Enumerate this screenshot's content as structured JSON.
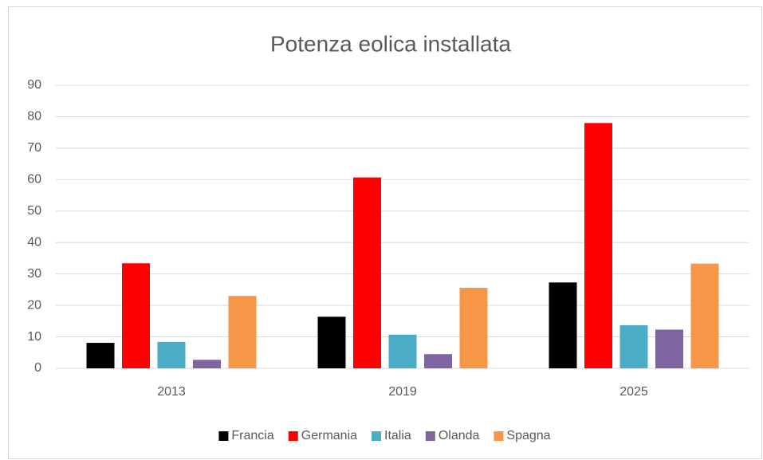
{
  "chart_data": {
    "type": "bar",
    "title": "Potenza eolica installata",
    "categories": [
      "2013",
      "2019",
      "2025"
    ],
    "series": [
      {
        "name": "Francia",
        "color": "#000000",
        "values": [
          8.1,
          16.4,
          27.3
        ]
      },
      {
        "name": "Germania",
        "color": "#ff0000",
        "values": [
          33.4,
          60.7,
          78
        ]
      },
      {
        "name": "Italia",
        "color": "#4bacc6",
        "values": [
          8.4,
          10.7,
          13.7
        ]
      },
      {
        "name": "Olanda",
        "color": "#8064a2",
        "values": [
          2.7,
          4.5,
          12.3
        ]
      },
      {
        "name": "Spagna",
        "color": "#f79646",
        "values": [
          23,
          25.6,
          33.3
        ]
      }
    ],
    "ylim": [
      0,
      90
    ],
    "yticks": [
      0,
      10,
      20,
      30,
      40,
      50,
      60,
      70,
      80,
      90
    ],
    "grid": true,
    "legend": "bottom"
  }
}
